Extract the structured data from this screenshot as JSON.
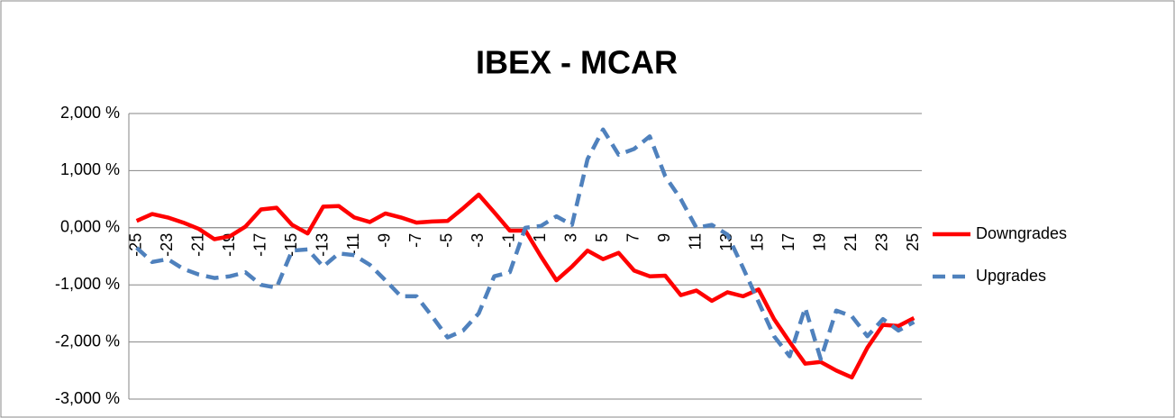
{
  "chart_data": {
    "type": "line",
    "title": "IBEX - MCAR",
    "categories": [
      "-25",
      null,
      "-23",
      null,
      "-21",
      null,
      "-19",
      null,
      "-17",
      null,
      "-15",
      null,
      "-13",
      null,
      "-11",
      null,
      "-9",
      null,
      "-7",
      null,
      "-5",
      null,
      "-3",
      null,
      "-1",
      null,
      "1",
      null,
      "3",
      null,
      "5",
      null,
      "7",
      null,
      "9",
      null,
      "11",
      null,
      "13",
      null,
      "15",
      null,
      "17",
      null,
      "19",
      null,
      "21",
      null,
      "23",
      null,
      "25"
    ],
    "series": [
      {
        "name": "Downgrades",
        "color": "#ff0000",
        "dash": "solid",
        "values": [
          0.12,
          0.24,
          0.18,
          0.09,
          -0.02,
          -0.2,
          -0.15,
          0.02,
          0.32,
          0.35,
          0.05,
          -0.1,
          0.37,
          0.38,
          0.18,
          0.1,
          0.25,
          0.18,
          0.09,
          0.11,
          0.12,
          0.34,
          0.58,
          0.27,
          -0.05,
          -0.05,
          -0.5,
          -0.92,
          -0.68,
          -0.4,
          -0.55,
          -0.44,
          -0.75,
          -0.85,
          -0.84,
          -1.18,
          -1.1,
          -1.28,
          -1.13,
          -1.2,
          -1.08,
          -1.6,
          -2.0,
          -2.38,
          -2.35,
          -2.5,
          -2.62,
          -2.1,
          -1.7,
          -1.72,
          -1.58
        ]
      },
      {
        "name": "Upgrades",
        "color": "#4f81bd",
        "dash": "dashed",
        "values": [
          -0.35,
          -0.6,
          -0.55,
          -0.72,
          -0.82,
          -0.88,
          -0.85,
          -0.78,
          -1.0,
          -1.05,
          -0.4,
          -0.38,
          -0.68,
          -0.45,
          -0.48,
          -0.65,
          -0.92,
          -1.2,
          -1.2,
          -1.55,
          -1.92,
          -1.8,
          -1.5,
          -0.85,
          -0.78,
          0.0,
          0.03,
          0.2,
          0.05,
          1.2,
          1.72,
          1.28,
          1.38,
          1.6,
          0.9,
          0.5,
          0.0,
          0.05,
          -0.12,
          -0.7,
          -1.3,
          -1.9,
          -2.25,
          -1.4,
          -2.3,
          -1.45,
          -1.55,
          -1.9,
          -1.6,
          -1.8,
          -1.65
        ]
      }
    ],
    "ylim": [
      -3,
      2
    ],
    "yticks": [
      {
        "value": -3,
        "label": "-3,000 %"
      },
      {
        "value": -2,
        "label": "-2,000 %"
      },
      {
        "value": -1,
        "label": "-1,000 %"
      },
      {
        "value": 0,
        "label": "0,000 %"
      },
      {
        "value": 1,
        "label": "1,000 %"
      },
      {
        "value": 2,
        "label": "2,000 %"
      }
    ],
    "grid": true,
    "legend": "right"
  }
}
